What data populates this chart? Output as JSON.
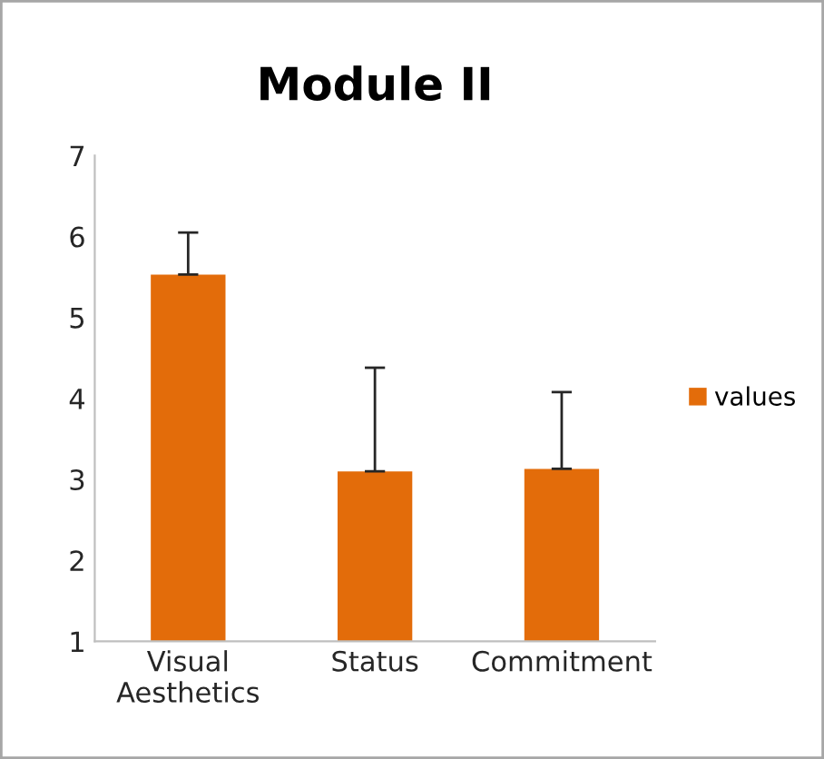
{
  "chart_data": {
    "type": "bar",
    "title": "Module II",
    "categories": [
      "Visual\nAesthetics",
      "Status",
      "Commitment"
    ],
    "series": [
      {
        "name": "values",
        "color": "#e36c0a",
        "values": [
          5.53,
          3.1,
          3.13
        ],
        "errors": [
          [
            5.53,
            6.05
          ],
          [
            3.1,
            4.38
          ],
          [
            3.13,
            4.08
          ]
        ]
      }
    ],
    "ylim": [
      1,
      7
    ],
    "yticks": [
      1,
      2,
      3,
      4,
      5,
      6,
      7
    ],
    "grid": false,
    "legend": "right"
  }
}
